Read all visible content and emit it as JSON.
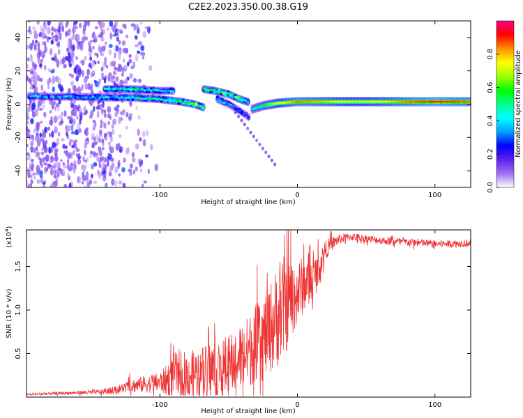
{
  "figure": {
    "title": "C2E2.2023.350.00.38.G19"
  },
  "colorbar": {
    "label": "Normalized spectral amplitude",
    "range": [
      0,
      1
    ],
    "ticks": [
      "0.0",
      "0.2",
      "0.4",
      "0.6",
      "0.8"
    ],
    "tick_values": [
      0.0,
      0.2,
      0.4,
      0.6,
      0.8
    ],
    "colors": [
      "#ffffff",
      "#a070f0",
      "#6020f0",
      "#0000ff",
      "#00a0ff",
      "#00ffff",
      "#00ff90",
      "#00ff00",
      "#a0ff00",
      "#ffff00",
      "#ff9000",
      "#ff0000",
      "#ff0080"
    ]
  },
  "chart_data": [
    {
      "type": "heatmap",
      "title": "C2E2.2023.350.00.38.G19",
      "xlabel": "Height of straight line (km)",
      "ylabel": "Frequency (Hz)",
      "xlim": [
        -197,
        126
      ],
      "ylim": [
        -50,
        50
      ],
      "xticks": [
        -100,
        0,
        100
      ],
      "xtick_labels": [
        "-100",
        "0",
        "100"
      ],
      "yticks": [
        -40,
        -20,
        0,
        20,
        40
      ],
      "ytick_labels": [
        "-40",
        "-20",
        "0",
        "20",
        "40"
      ],
      "ridges": [
        {
          "x": [
            -195,
            -180,
            -160,
            -140,
            -120,
            -100,
            -85,
            -75,
            -68
          ],
          "y": [
            5,
            4.5,
            4.5,
            4,
            4,
            3,
            1.5,
            0,
            -2
          ],
          "amplitude": [
            0.35,
            0.35,
            0.35,
            0.4,
            0.45,
            0.5,
            0.55,
            0.6,
            0.7
          ]
        },
        {
          "x": [
            -140,
            -130,
            -120,
            -100,
            -90
          ],
          "y": [
            9,
            9,
            9,
            8,
            8
          ],
          "amplitude": [
            0.45,
            0.45,
            0.5,
            0.4,
            0.4
          ]
        },
        {
          "x": [
            -68,
            -60,
            -50,
            -42,
            -35
          ],
          "y": [
            9,
            8,
            6,
            3,
            1
          ],
          "amplitude": [
            0.5,
            0.55,
            0.6,
            0.55,
            0.5
          ]
        },
        {
          "x": [
            -58,
            -50,
            -42,
            -35
          ],
          "y": [
            3,
            0,
            -4,
            -8
          ],
          "amplitude": [
            0.4,
            0.35,
            0.3,
            0.25
          ]
        },
        {
          "x": [
            -33,
            -25,
            -15,
            0,
            20,
            40,
            60,
            80,
            100,
            126
          ],
          "y": [
            -3,
            -1,
            0.5,
            1.5,
            1.5,
            1.5,
            1.5,
            1.5,
            1.5,
            1.5
          ],
          "amplitude": [
            0.45,
            0.55,
            0.7,
            0.85,
            0.8,
            0.7,
            0.75,
            0.85,
            0.9,
            0.85
          ]
        }
      ],
      "noise_region_x": [
        -197,
        -140
      ]
    },
    {
      "type": "line",
      "xlabel": "Height of straight line (km)",
      "ylabel": "SNR (10 * v/v)",
      "multiplier_label": "(x10",
      "multiplier_exponent": "4",
      "multiplier_suffix": ")",
      "xlim": [
        -197,
        126
      ],
      "ylim": [
        0,
        19200
      ],
      "xticks": [
        -100,
        0,
        100
      ],
      "xtick_labels": [
        "-100",
        "0",
        "100"
      ],
      "yticks": [
        5000,
        10000,
        15000
      ],
      "ytick_labels": [
        "0.5",
        "1.0",
        "1.5"
      ],
      "series": [
        {
          "color": "#ee3333",
          "x": [
            -197,
            -180,
            -160,
            -140,
            -130,
            -120,
            -110,
            -100,
            -95,
            -90,
            -85,
            -80,
            -75,
            -70,
            -65,
            -60,
            -55,
            -50,
            -45,
            -40,
            -35,
            -30,
            -25,
            -20,
            -15,
            -10,
            -5,
            0,
            5,
            10,
            15,
            20,
            25,
            30,
            35,
            40,
            50,
            60,
            70,
            80,
            90,
            100,
            110,
            126
          ],
          "values": [
            300,
            400,
            500,
            600,
            900,
            1300,
            1500,
            1700,
            1900,
            2600,
            2800,
            2500,
            2700,
            2900,
            3100,
            3200,
            3300,
            3600,
            4200,
            4700,
            5300,
            6200,
            6800,
            7800,
            9200,
            10200,
            11300,
            12000,
            13000,
            13200,
            14500,
            16800,
            17600,
            18100,
            18300,
            18400,
            18200,
            18000,
            17900,
            17800,
            17700,
            17600,
            17600,
            17700
          ],
          "noise_amplitude": [
            100,
            150,
            200,
            300,
            500,
            800,
            1000,
            1200,
            1800,
            2500,
            2800,
            2600,
            2800,
            3000,
            3200,
            3300,
            3500,
            3600,
            3800,
            4000,
            4200,
            4500,
            4800,
            5200,
            5800,
            6000,
            4800,
            3800,
            3200,
            2800,
            2000,
            1200,
            800,
            600,
            500,
            450,
            450,
            450,
            450,
            450,
            450,
            450,
            450,
            450
          ]
        }
      ]
    }
  ]
}
